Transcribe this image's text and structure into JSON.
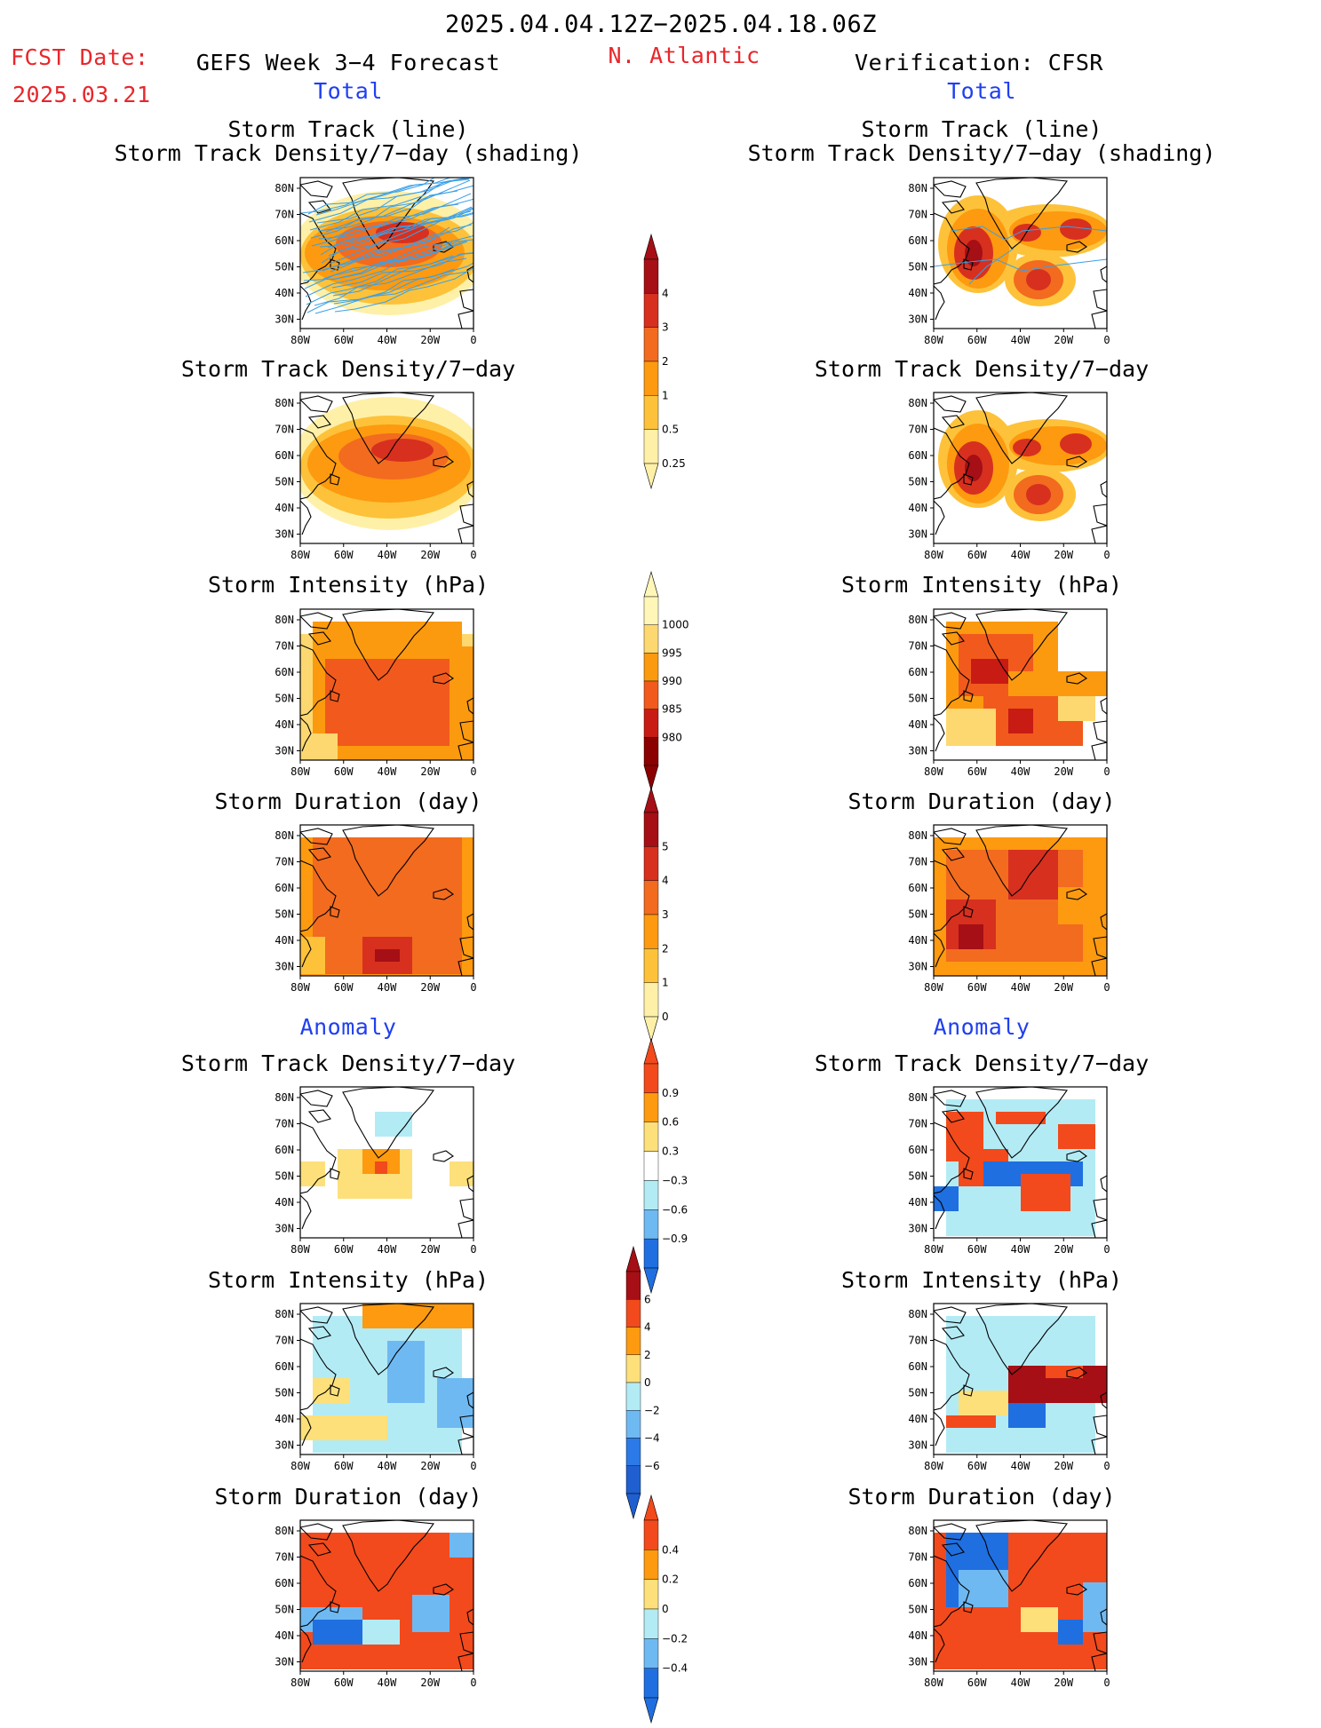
{
  "header": {
    "date_range": "2025.04.04.12Z−2025.04.18.06Z",
    "fcst_label": "FCST Date:",
    "fcst_date": "2025.03.21",
    "region": "N. Atlantic",
    "left_title": "GEFS Week 3−4 Forecast",
    "right_title": "Verification: CFSR",
    "left_section": "Total",
    "right_section": "Total",
    "left_anomaly": "Anomaly",
    "right_anomaly": "Anomaly"
  },
  "axes": {
    "lat_labels": [
      "80N",
      "70N",
      "60N",
      "50N",
      "40N",
      "30N"
    ],
    "lon_labels": [
      "80W",
      "60W",
      "40W",
      "20W",
      "0"
    ]
  },
  "panels": {
    "track_title_1": "Storm Track (line)",
    "track_title_2": "Storm Track Density/7−day (shading)",
    "density": "Storm Track Density/7−day",
    "intensity": "Storm Intensity (hPa)",
    "duration": "Storm Duration (day)"
  },
  "colorbars": {
    "density": {
      "labels": [
        "4",
        "3",
        "2",
        "1",
        "0.5",
        "0.25"
      ],
      "colors": [
        "#a50f15",
        "#d7301f",
        "#f26b1f",
        "#fd9a0f",
        "#fdc23a",
        "#fff0a8"
      ]
    },
    "intensity": {
      "labels": [
        "1000",
        "995",
        "990",
        "985",
        "980"
      ],
      "colors": [
        "#fff6b8",
        "#fdd870",
        "#fb9a0f",
        "#f15a1c",
        "#c81b14",
        "#8b0000"
      ]
    },
    "duration": {
      "labels": [
        "5",
        "4",
        "3",
        "2",
        "1",
        "0"
      ],
      "colors": [
        "#a50f15",
        "#d7301f",
        "#f26b1f",
        "#fd9a0f",
        "#fdc23a",
        "#fff0a8"
      ]
    },
    "density_anom": {
      "labels": [
        "0.9",
        "0.6",
        "0.3",
        "−0.3",
        "−0.6",
        "−0.9"
      ],
      "colors": [
        "#f24a1c",
        "#fd9a0f",
        "#fde07a",
        "#ffffff",
        "#b3ebf5",
        "#6fb9f2",
        "#1f6fe0"
      ]
    },
    "intensity_anom": {
      "labels": [
        "6",
        "4",
        "2",
        "0",
        "−2",
        "−4",
        "−6"
      ],
      "colors": [
        "#a50f15",
        "#f24a1c",
        "#fd9a0f",
        "#fde07a",
        "#b3ebf5",
        "#6fb9f2",
        "#2b7ae8",
        "#1f5fd0"
      ]
    },
    "duration_anom": {
      "labels": [
        "0.4",
        "0.2",
        "0",
        "−0.2",
        "−0.4"
      ],
      "colors": [
        "#f24a1c",
        "#fd9a0f",
        "#fde07a",
        "#b3ebf5",
        "#6fb9f2",
        "#1f6fe0"
      ]
    }
  },
  "colors": {
    "title_red": "#e8262b",
    "section_blue": "#1f3ff0",
    "track_line": "#3aa0e8"
  }
}
